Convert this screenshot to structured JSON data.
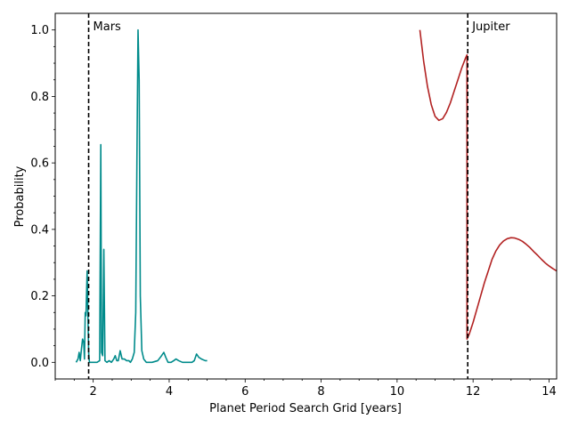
{
  "chart_data": {
    "type": "line",
    "title": "",
    "xlabel": "Planet Period Search Grid [years]",
    "ylabel": "Probability",
    "xlim": [
      1.0,
      14.2
    ],
    "ylim": [
      -0.05,
      1.05
    ],
    "xticks": [
      2,
      4,
      6,
      8,
      10,
      12,
      14
    ],
    "yticks": [
      0.0,
      0.2,
      0.4,
      0.6,
      0.8,
      1.0
    ],
    "grid": false,
    "legend": "none",
    "series": [
      {
        "color": "#008b8b",
        "points": [
          [
            1.55,
            0.0
          ],
          [
            1.6,
            0.01
          ],
          [
            1.63,
            0.03
          ],
          [
            1.66,
            0.005
          ],
          [
            1.69,
            0.04
          ],
          [
            1.72,
            0.07
          ],
          [
            1.75,
            0.06
          ],
          [
            1.77,
            0.01
          ],
          [
            1.79,
            0.15
          ],
          [
            1.81,
            0.14
          ],
          [
            1.84,
            0.275
          ],
          [
            1.86,
            0.15
          ],
          [
            1.88,
            0.03
          ],
          [
            1.9,
            0.0
          ],
          [
            1.95,
            0.0
          ],
          [
            2.0,
            0.0
          ],
          [
            2.1,
            0.0
          ],
          [
            2.17,
            0.005
          ],
          [
            2.2,
            0.655
          ],
          [
            2.22,
            0.03
          ],
          [
            2.25,
            0.02
          ],
          [
            2.28,
            0.34
          ],
          [
            2.31,
            0.005
          ],
          [
            2.36,
            0.0
          ],
          [
            2.42,
            0.005
          ],
          [
            2.48,
            0.0
          ],
          [
            2.54,
            0.01
          ],
          [
            2.58,
            0.02
          ],
          [
            2.62,
            0.005
          ],
          [
            2.66,
            0.005
          ],
          [
            2.71,
            0.035
          ],
          [
            2.76,
            0.01
          ],
          [
            2.82,
            0.01
          ],
          [
            2.88,
            0.005
          ],
          [
            2.94,
            0.005
          ],
          [
            2.98,
            0.0
          ],
          [
            3.03,
            0.01
          ],
          [
            3.08,
            0.03
          ],
          [
            3.12,
            0.15
          ],
          [
            3.15,
            0.6
          ],
          [
            3.18,
            1.0
          ],
          [
            3.21,
            0.85
          ],
          [
            3.24,
            0.2
          ],
          [
            3.28,
            0.035
          ],
          [
            3.33,
            0.01
          ],
          [
            3.4,
            0.0
          ],
          [
            3.55,
            0.0
          ],
          [
            3.7,
            0.005
          ],
          [
            3.8,
            0.02
          ],
          [
            3.86,
            0.03
          ],
          [
            3.91,
            0.015
          ],
          [
            3.97,
            0.0
          ],
          [
            4.05,
            0.0
          ],
          [
            4.12,
            0.005
          ],
          [
            4.18,
            0.01
          ],
          [
            4.25,
            0.005
          ],
          [
            4.35,
            0.0
          ],
          [
            4.5,
            0.0
          ],
          [
            4.6,
            0.0
          ],
          [
            4.66,
            0.005
          ],
          [
            4.72,
            0.025
          ],
          [
            4.78,
            0.015
          ],
          [
            4.85,
            0.01
          ],
          [
            4.95,
            0.005
          ],
          [
            5.0,
            0.005
          ]
        ]
      },
      {
        "color": "#b22222",
        "points": [
          [
            10.6,
            1.0
          ],
          [
            10.7,
            0.905
          ],
          [
            10.8,
            0.83
          ],
          [
            10.9,
            0.775
          ],
          [
            11.0,
            0.74
          ],
          [
            11.1,
            0.728
          ],
          [
            11.2,
            0.733
          ],
          [
            11.3,
            0.752
          ],
          [
            11.4,
            0.78
          ],
          [
            11.5,
            0.815
          ],
          [
            11.6,
            0.85
          ],
          [
            11.7,
            0.885
          ],
          [
            11.8,
            0.915
          ],
          [
            11.84,
            0.925
          ],
          [
            11.84,
            0.07
          ],
          [
            11.9,
            0.085
          ],
          [
            12.0,
            0.12
          ],
          [
            12.1,
            0.16
          ],
          [
            12.2,
            0.2
          ],
          [
            12.3,
            0.24
          ],
          [
            12.4,
            0.275
          ],
          [
            12.5,
            0.31
          ],
          [
            12.6,
            0.335
          ],
          [
            12.7,
            0.353
          ],
          [
            12.8,
            0.365
          ],
          [
            12.9,
            0.372
          ],
          [
            13.0,
            0.375
          ],
          [
            13.1,
            0.374
          ],
          [
            13.2,
            0.37
          ],
          [
            13.3,
            0.364
          ],
          [
            13.4,
            0.355
          ],
          [
            13.5,
            0.345
          ],
          [
            13.6,
            0.333
          ],
          [
            13.7,
            0.322
          ],
          [
            13.8,
            0.31
          ],
          [
            13.9,
            0.299
          ],
          [
            14.0,
            0.29
          ],
          [
            14.1,
            0.282
          ],
          [
            14.2,
            0.275
          ]
        ]
      }
    ],
    "annotations": [
      {
        "label": "Mars",
        "x": 1.88
      },
      {
        "label": "Jupiter",
        "x": 11.86
      }
    ]
  }
}
